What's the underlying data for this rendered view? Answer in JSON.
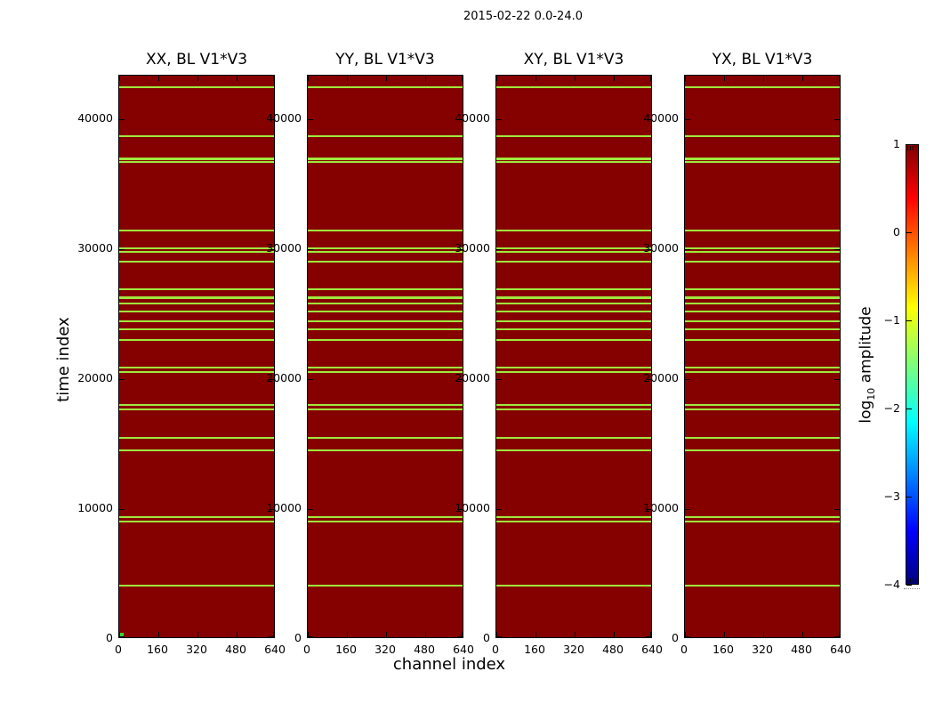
{
  "chart_data": {
    "type": "heatmap",
    "suptitle": "2015-02-22 0.0-24.0",
    "xlabel": "channel index",
    "ylabel": "time index",
    "panels": [
      {
        "title": "XX, BL V1*V3"
      },
      {
        "title": "YY, BL V1*V3"
      },
      {
        "title": "XY, BL V1*V3"
      },
      {
        "title": "YX, BL V1*V3"
      }
    ],
    "xlim": [
      0,
      640
    ],
    "ylim": [
      0,
      43356
    ],
    "x_ticks": [
      "0",
      "160",
      "320",
      "480",
      "640"
    ],
    "x_tick_values": [
      0,
      160,
      320,
      480,
      640
    ],
    "y_ticks": [
      "0",
      "10000",
      "20000",
      "30000",
      "40000"
    ],
    "y_tick_values": [
      0,
      10000,
      20000,
      30000,
      40000
    ],
    "grid": false,
    "colors": {
      "background_value": "#850100",
      "stripe": "#a0e83e",
      "corner_marker": "#3fd435",
      "axes": "#000000",
      "figure_background": "#ffffff"
    },
    "rfi_time_rows": [
      {
        "t": 42480,
        "thick": false
      },
      {
        "t": 38700,
        "thick": false
      },
      {
        "t": 36980,
        "thick": true
      },
      {
        "t": 36700,
        "thick": false
      },
      {
        "t": 31440,
        "thick": false
      },
      {
        "t": 30070,
        "thick": false
      },
      {
        "t": 29790,
        "thick": false
      },
      {
        "t": 29060,
        "thick": false
      },
      {
        "t": 26950,
        "thick": false
      },
      {
        "t": 26250,
        "thick": true
      },
      {
        "t": 25820,
        "thick": false
      },
      {
        "t": 25200,
        "thick": false
      },
      {
        "t": 24450,
        "thick": false
      },
      {
        "t": 23830,
        "thick": false
      },
      {
        "t": 23010,
        "thick": false
      },
      {
        "t": 20890,
        "thick": false
      },
      {
        "t": 20580,
        "thick": false
      },
      {
        "t": 17980,
        "thick": false
      },
      {
        "t": 17670,
        "thick": false
      },
      {
        "t": 15480,
        "thick": false
      },
      {
        "t": 14520,
        "thick": false
      },
      {
        "t": 9380,
        "thick": false
      },
      {
        "t": 9040,
        "thick": false
      },
      {
        "t": 4110,
        "thick": false
      }
    ],
    "corner_marker": {
      "panel_index": 0,
      "time": 0,
      "channel": 0
    },
    "colorbar": {
      "colormap": "jet",
      "vmin": -4,
      "vmax": 1,
      "ticks": [
        "1",
        "0",
        "−1",
        "−2",
        "−3",
        "−4"
      ],
      "tick_values": [
        1,
        0,
        -1,
        -2,
        -3,
        -4
      ],
      "label_prefix": "log",
      "label_sub": "10",
      "label_suffix": " amplitude",
      "legend_position": "right"
    }
  }
}
